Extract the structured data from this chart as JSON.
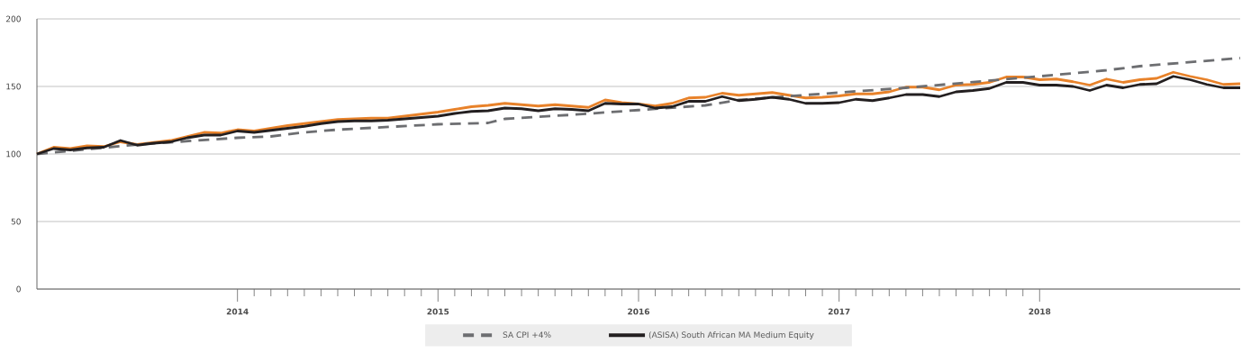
{
  "chart_data": {
    "type": "line",
    "xlim": [
      "2013-01",
      "2019-01"
    ],
    "ylim": [
      0,
      200
    ],
    "xticks": [
      {
        "value": "2014-01",
        "label": "2014"
      },
      {
        "value": "2015-01",
        "label": "2015"
      },
      {
        "value": "2016-01",
        "label": "2016"
      },
      {
        "value": "2017-01",
        "label": "2017"
      },
      {
        "value": "2018-01",
        "label": "2018"
      }
    ],
    "yticks": [
      0,
      50,
      100,
      150,
      200
    ],
    "grid": "y",
    "legend": "bottom",
    "marker": "none",
    "x": [
      "2013-01",
      "2013-02",
      "2013-03",
      "2013-04",
      "2013-05",
      "2013-06",
      "2013-07",
      "2013-08",
      "2013-09",
      "2013-10",
      "2013-11",
      "2013-12",
      "2014-01",
      "2014-02",
      "2014-03",
      "2014-04",
      "2014-05",
      "2014-06",
      "2014-07",
      "2014-08",
      "2014-09",
      "2014-10",
      "2014-11",
      "2014-12",
      "2015-01",
      "2015-02",
      "2015-03",
      "2015-04",
      "2015-05",
      "2015-06",
      "2015-07",
      "2015-08",
      "2015-09",
      "2015-10",
      "2015-11",
      "2015-12",
      "2016-01",
      "2016-02",
      "2016-03",
      "2016-04",
      "2016-05",
      "2016-06",
      "2016-07",
      "2016-08",
      "2016-09",
      "2016-10",
      "2016-11",
      "2016-12",
      "2017-01",
      "2017-02",
      "2017-03",
      "2017-04",
      "2017-05",
      "2017-06",
      "2017-07",
      "2017-08",
      "2017-09",
      "2017-10",
      "2017-11",
      "2017-12",
      "2018-01",
      "2018-02",
      "2018-03",
      "2018-04",
      "2018-05",
      "2018-06",
      "2018-07",
      "2018-08",
      "2018-09",
      "2018-10",
      "2018-11",
      "2018-12",
      "2019-01"
    ],
    "series": [
      {
        "color": "#e8822a",
        "line_style": "solid",
        "values": [
          100,
          105,
          104,
          106,
          105.5,
          109,
          107,
          108.5,
          110,
          113,
          116,
          115.5,
          118,
          117,
          119,
          121,
          122.5,
          124,
          125.5,
          126,
          126.5,
          126.5,
          128,
          129.5,
          131,
          133,
          135,
          136,
          137.5,
          136.5,
          135.5,
          136.5,
          135.5,
          134.5,
          140,
          138,
          137,
          135.5,
          137.5,
          141.5,
          142,
          145,
          143.5,
          144.5,
          145.5,
          143.5,
          141.5,
          142,
          143,
          144.5,
          144.5,
          146,
          149.5,
          149.5,
          147.5,
          151,
          151.5,
          153,
          157,
          157,
          155,
          155.5,
          153.5,
          151,
          155.5,
          153,
          155,
          156,
          160.5,
          157.5,
          155,
          151.5,
          152
        ]
      },
      {
        "name": "SA CPI +4%",
        "color": "#6d6e71",
        "line_style": "dashed",
        "x": [
          "2013-01",
          "2013-07",
          "2014-01",
          "2014-03",
          "2014-05",
          "2014-07",
          "2015-01",
          "2015-04",
          "2015-05",
          "2015-09",
          "2016-01",
          "2016-05",
          "2016-07",
          "2017-01",
          "2017-05",
          "2018-01",
          "2018-05",
          "2018-07",
          "2018-10",
          "2019-01"
        ],
        "values": [
          100,
          107,
          112,
          113,
          116,
          118,
          122,
          123,
          126,
          129,
          132.5,
          136,
          140,
          145.5,
          149,
          157.5,
          162,
          165,
          168,
          171
        ]
      },
      {
        "name": "(ASISA) South African MA Medium Equity",
        "color": "#231f20",
        "line_style": "solid",
        "values": [
          100,
          104,
          103,
          104.5,
          105,
          110,
          106.5,
          108,
          109,
          112,
          114,
          114,
          117,
          116,
          117.5,
          119,
          120.5,
          122.5,
          124,
          124.5,
          124.5,
          125,
          126,
          127,
          128,
          130,
          131.5,
          132,
          134,
          133.5,
          132,
          133.5,
          133,
          132,
          137.5,
          137,
          137,
          134,
          135,
          139,
          139,
          142.5,
          139.5,
          140.5,
          142,
          140.5,
          137.5,
          137.5,
          138,
          140.5,
          139.5,
          141.5,
          144,
          144,
          142.5,
          146,
          147,
          148.5,
          153,
          153,
          151,
          151,
          150,
          147,
          151,
          149,
          151.5,
          152,
          157.5,
          155,
          151.5,
          149,
          149
        ]
      }
    ]
  }
}
